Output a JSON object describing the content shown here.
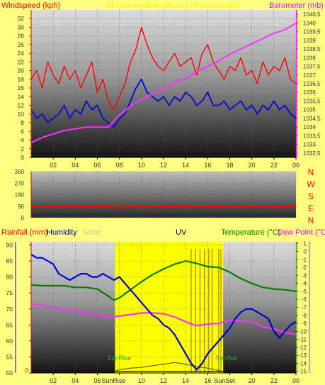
{
  "page": {
    "background": "#ffff80",
    "header_faded_text": "24 Hour weather data to 17 February 2007"
  },
  "chart_data": [
    {
      "id": "top",
      "type": "line",
      "title": "24 Hour weather data to 17 February 2007",
      "left_axis_label": "Windspeed (kph)",
      "right_axis_label": "Barometer (mb)",
      "left_ylim": [
        0,
        34
      ],
      "left_ticks": [
        "0",
        "2",
        "4",
        "6",
        "8",
        "10",
        "12",
        "14",
        "16",
        "18",
        "20",
        "22",
        "24",
        "26",
        "28",
        "30",
        "32"
      ],
      "right_ylim": [
        1032.25,
        1040.75
      ],
      "right_ticks": [
        "1032,5",
        "1033",
        "1033,5",
        "1034",
        "1034,5",
        "1035",
        "1035,5",
        "1036",
        "1036,5",
        "1037",
        "1037,5",
        "1038",
        "1038,5",
        "1039",
        "1039,5",
        "1040",
        "1040,5"
      ],
      "x_ticks": [
        "02",
        "04",
        "06",
        "08",
        "10",
        "12",
        "14",
        "16",
        "18",
        "20",
        "22",
        "00"
      ],
      "xlim_hours": [
        0,
        24
      ],
      "grid": true,
      "series": [
        {
          "name": "Gust",
          "color": "#ff0000",
          "x": [
            0,
            0.5,
            1,
            1.5,
            2,
            2.5,
            3,
            3.5,
            4,
            4.5,
            5,
            5.5,
            6,
            6.5,
            7,
            7.5,
            8,
            8.5,
            9,
            9.5,
            10,
            10.5,
            11,
            11.5,
            12,
            12.5,
            13,
            13.5,
            14,
            14.5,
            15,
            15.5,
            16,
            16.5,
            17,
            17.5,
            18,
            18.5,
            19,
            19.5,
            20,
            20.5,
            21,
            21.5,
            22,
            22.5,
            23,
            23.5,
            24
          ],
          "values": [
            18,
            20,
            16,
            22,
            19,
            17,
            21,
            18,
            20,
            16,
            19,
            22,
            15,
            18,
            13,
            11,
            14,
            17,
            22,
            25,
            30,
            26,
            23,
            21,
            20,
            22,
            24,
            21,
            22,
            23,
            19,
            24,
            26,
            22,
            20,
            18,
            21,
            20,
            23,
            19,
            20,
            17,
            22,
            19,
            21,
            20,
            23,
            18,
            17
          ]
        },
        {
          "name": "Wind",
          "color": "#1010d0",
          "x": [
            0,
            0.5,
            1,
            1.5,
            2,
            2.5,
            3,
            3.5,
            4,
            4.5,
            5,
            5.5,
            6,
            6.5,
            7,
            7.5,
            8,
            8.5,
            9,
            9.5,
            10,
            10.5,
            11,
            11.5,
            12,
            12.5,
            13,
            13.5,
            14,
            14.5,
            15,
            15.5,
            16,
            16.5,
            17,
            17.5,
            18,
            18.5,
            19,
            19.5,
            20,
            20.5,
            21,
            21.5,
            22,
            22.5,
            23,
            23.5,
            24
          ],
          "values": [
            11,
            9,
            10,
            8,
            9,
            10,
            12,
            9,
            11,
            10,
            13,
            11,
            12,
            9,
            8,
            7,
            9,
            10,
            13,
            16,
            18,
            15,
            14,
            13,
            14,
            12,
            14,
            13,
            15,
            14,
            12,
            13,
            15,
            12,
            12,
            13,
            11,
            12,
            13,
            11,
            12,
            10,
            12,
            11,
            13,
            11,
            12,
            10,
            9
          ]
        },
        {
          "name": "Barometer",
          "color": "#ff30ff",
          "x": [
            0,
            1,
            2,
            3,
            4,
            5,
            6,
            7,
            8,
            9,
            10,
            11,
            12,
            13,
            14,
            15,
            16,
            17,
            18,
            19,
            20,
            21,
            22,
            23,
            24
          ],
          "values": [
            1033.1,
            1033.4,
            1033.6,
            1033.8,
            1033.9,
            1034.0,
            1034.0,
            1034.0,
            1034.7,
            1035.2,
            1035.6,
            1035.9,
            1036.2,
            1036.6,
            1036.8,
            1037.2,
            1037.5,
            1037.8,
            1038.2,
            1038.5,
            1038.8,
            1039.1,
            1039.4,
            1039.6,
            1040.0
          ]
        }
      ]
    },
    {
      "id": "direction",
      "type": "line",
      "left_ylim": [
        0,
        360
      ],
      "left_ticks": [
        "0",
        "90",
        "180",
        "270",
        "360"
      ],
      "right_labels": [
        "N",
        "W",
        "S",
        "E",
        "N"
      ],
      "xlim_hours": [
        0,
        24
      ],
      "grid": true,
      "series": [
        {
          "name": "Wind direction",
          "color": "#ff0000",
          "x": [
            0,
            1,
            2,
            3,
            4,
            5,
            6,
            7,
            8,
            9,
            10,
            11,
            12,
            13,
            14,
            15,
            16,
            17,
            18,
            19,
            20,
            21,
            22,
            23,
            24
          ],
          "values": [
            88,
            82,
            92,
            86,
            84,
            88,
            90,
            85,
            80,
            83,
            86,
            82,
            88,
            84,
            86,
            83,
            85,
            88,
            84,
            86,
            83,
            87,
            85,
            88,
            90
          ]
        }
      ]
    },
    {
      "id": "bottom",
      "type": "line",
      "labels": {
        "rainfall": "Rainfall (mm)",
        "humidity": "Humidity",
        "solar": "Solar",
        "uv": "UV",
        "temperature": "Temperature (°C)",
        "dewpoint": "Dew Point (°C)"
      },
      "label_colors": {
        "rainfall": "#ff0000",
        "humidity": "#0000c0",
        "solar": "#c8c8a0",
        "uv": "#000000",
        "temperature": "#008000",
        "dewpoint": "#ff00ff"
      },
      "left_ylim": [
        50,
        91
      ],
      "left_ticks": [
        "50",
        "55",
        "60",
        "65",
        "70",
        "75",
        "80",
        "85",
        "90"
      ],
      "right_ylim": [
        -15.2,
        1.2
      ],
      "right_ticks": [
        "-15",
        "-14",
        "-13",
        "-12",
        "-11",
        "-10",
        "-9",
        "-8",
        "-7",
        "-6",
        "-5",
        "-4",
        "-3",
        "-2",
        "-1",
        "0",
        "1"
      ],
      "x_ticks": [
        "02",
        "04",
        "06",
        "08",
        "10",
        "12",
        "14",
        "16",
        "18",
        "20",
        "22",
        "00"
      ],
      "extra_x_labels": [
        "SunRise",
        "SunSet"
      ],
      "xlim_hours": [
        0,
        24
      ],
      "sunrise_hour": 7.6,
      "sunset_hour": 17.4,
      "daylight_color": "#ffff00",
      "sunrise_label": "SunRise",
      "sunset_label": "SunSet",
      "grid": true,
      "series": [
        {
          "name": "Humidity",
          "color": "#0000d0",
          "axis": "left",
          "x": [
            0,
            0.5,
            1,
            1.5,
            2,
            2.5,
            3,
            3.5,
            4,
            4.5,
            5,
            5.5,
            6,
            6.5,
            7,
            7.5,
            8,
            8.5,
            9,
            9.5,
            10,
            10.5,
            11,
            11.5,
            12,
            12.5,
            13,
            13.5,
            14,
            14.5,
            15,
            15.5,
            16,
            16.5,
            17,
            17.5,
            18,
            18.5,
            19,
            19.5,
            20,
            20.5,
            21,
            21.5,
            22,
            22.5,
            23,
            23.5,
            24
          ],
          "values": [
            87,
            86,
            86,
            85,
            84,
            81,
            80,
            79,
            80,
            81,
            81,
            80,
            80,
            81,
            80,
            79,
            80,
            78,
            76,
            74,
            72,
            70,
            68,
            67,
            65,
            64,
            62,
            59,
            56,
            53,
            51,
            53,
            56,
            58,
            60,
            62,
            64,
            67,
            69,
            70,
            70,
            69,
            68,
            67,
            63,
            61,
            63,
            65,
            66
          ]
        },
        {
          "name": "Temperature",
          "color": "#008000",
          "axis": "right",
          "x": [
            0,
            1,
            2,
            3,
            4,
            5,
            6,
            7,
            7.5,
            8,
            9,
            10,
            11,
            12,
            13,
            14,
            15,
            16,
            17,
            18,
            19,
            20,
            21,
            22,
            23,
            24
          ],
          "values": [
            -4.2,
            -4.3,
            -4.3,
            -4.3,
            -4.5,
            -4.5,
            -4.7,
            -5.6,
            -6.1,
            -5.8,
            -4.8,
            -3.8,
            -2.9,
            -2.2,
            -1.6,
            -1.2,
            -1.5,
            -1.9,
            -2.0,
            -2.6,
            -3.4,
            -4.0,
            -4.5,
            -4.7,
            -4.8,
            -5.0
          ]
        },
        {
          "name": "Dew Point",
          "color": "#ff30ff",
          "axis": "right",
          "x": [
            0,
            1,
            2,
            3,
            4,
            5,
            6,
            7,
            8,
            9,
            10,
            11,
            12,
            13,
            14,
            15,
            16,
            17,
            18,
            19,
            20,
            21,
            22,
            23,
            24
          ],
          "values": [
            -6.5,
            -6.8,
            -7.0,
            -7.2,
            -7.5,
            -7.7,
            -7.9,
            -8.2,
            -8.1,
            -7.9,
            -7.7,
            -7.7,
            -7.8,
            -8.2,
            -8.8,
            -9.3,
            -9.1,
            -9.0,
            -8.6,
            -8.7,
            -8.8,
            -9.4,
            -9.7,
            -10.1,
            -10.4
          ]
        },
        {
          "name": "Solar",
          "color": "#606030",
          "axis": "right",
          "x": [
            7.6,
            8,
            9,
            10,
            11,
            12,
            13,
            14,
            15,
            16,
            17,
            17.4
          ],
          "values": [
            -15,
            -14.8,
            -14.6,
            -14.5,
            -14.3,
            -14.1,
            -13.9,
            -14.1,
            -14.4,
            -14.6,
            -14.9,
            -15
          ]
        },
        {
          "name": "UV",
          "color": "#000000",
          "axis": "right",
          "x": [
            7.6,
            10,
            12,
            14,
            15,
            16,
            17.4
          ],
          "values": [
            -15,
            -15,
            -15,
            -15,
            -15,
            -15,
            -15
          ]
        }
      ],
      "rain_spikes_hours": [
        14.5,
        14.9,
        15.3,
        15.7,
        16.1,
        16.4,
        17.0,
        17.2
      ],
      "rain_spike_top": 0.3
    }
  ]
}
